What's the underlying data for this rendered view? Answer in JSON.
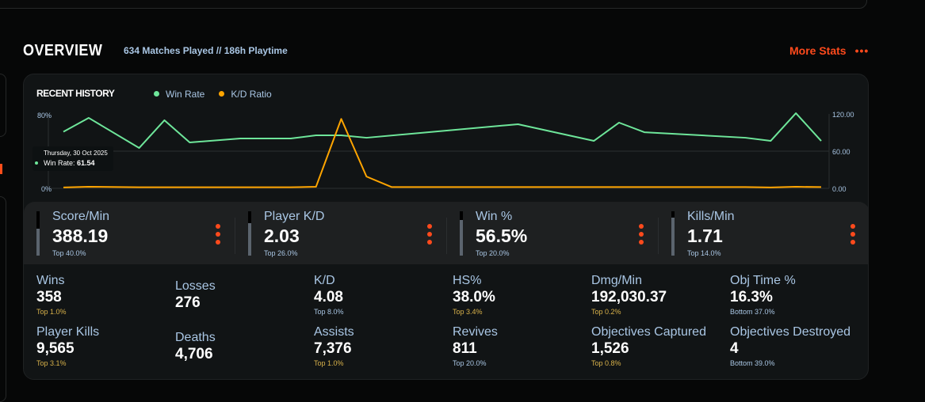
{
  "overview": {
    "title": "OVERVIEW",
    "subtitle": "634 Matches Played // 186h Playtime",
    "more_stats": "More Stats",
    "more_icon": "ellipsis-icon",
    "accent": "#ff4a1c"
  },
  "recent_history": {
    "title": "RECENT HISTORY",
    "tooltip": {
      "date": "Thursday, 30 Oct 2025",
      "label": "Win Rate:",
      "value": "61.54"
    },
    "chart_data": {
      "type": "line",
      "grid": true,
      "left_axis": {
        "ticks": [
          "80%",
          "0%"
        ],
        "range": [
          0,
          80
        ]
      },
      "right_axis": {
        "ticks": [
          "120.00",
          "60.00",
          "0.00"
        ],
        "range": [
          0,
          120
        ]
      },
      "series": [
        {
          "name": "Win Rate",
          "color": "#6ee69a",
          "axis": "left",
          "values": [
            61.54,
            76.6,
            null,
            43.9,
            74.0,
            49.9,
            null,
            54.2,
            null,
            54.2,
            57.6,
            57.6,
            55.0,
            null,
            null,
            null,
            null,
            null,
            69.7,
            null,
            null,
            51.6,
            71.4,
            61.0,
            null,
            null,
            null,
            55.0,
            51.6,
            81.7,
            51.6
          ]
        },
        {
          "name": "K/D Ratio",
          "color": "#ffa500",
          "axis": "right",
          "values": [
            1.5,
            2.5,
            null,
            1.8,
            1.8,
            1.8,
            null,
            1.8,
            null,
            1.8,
            2.5,
            112,
            19,
            2,
            null,
            null,
            null,
            null,
            2,
            null,
            null,
            2,
            2,
            2,
            null,
            null,
            null,
            2,
            1.5,
            2.5,
            2
          ]
        }
      ]
    }
  },
  "highlights": [
    {
      "label": "Score/Min",
      "value": "388.19",
      "rank": "Top 40.0%",
      "level": 0.6
    },
    {
      "label": "Player K/D",
      "value": "2.03",
      "rank": "Top 26.0%",
      "level": 0.74
    },
    {
      "label": "Win %",
      "value": "56.5%",
      "rank": "Top 20.0%",
      "level": 0.8
    },
    {
      "label": "Kills/Min",
      "value": "1.71",
      "rank": "Top 14.0%",
      "level": 0.86
    }
  ],
  "stats": [
    {
      "label": "Wins",
      "value": "358",
      "rank": "Top 1.0%",
      "gold": true
    },
    {
      "label": "Losses",
      "value": "276",
      "rank": ""
    },
    {
      "label": "K/D",
      "value": "4.08",
      "rank": "Top 8.0%"
    },
    {
      "label": "HS%",
      "value": "38.0%",
      "rank": "Top 3.4%",
      "gold": true
    },
    {
      "label": "Dmg/Min",
      "value": "192,030.37",
      "rank": "Top 0.2%",
      "gold": true
    },
    {
      "label": "Obj Time %",
      "value": "16.3%",
      "rank": "Bottom 37.0%"
    },
    {
      "label": "Player Kills",
      "value": "9,565",
      "rank": "Top 3.1%",
      "gold": true
    },
    {
      "label": "Deaths",
      "value": "4,706",
      "rank": ""
    },
    {
      "label": "Assists",
      "value": "7,376",
      "rank": "Top 1.0%",
      "gold": true
    },
    {
      "label": "Revives",
      "value": "811",
      "rank": "Top 20.0%"
    },
    {
      "label": "Objectives Captured",
      "value": "1,526",
      "rank": "Top 0.8%",
      "gold": true
    },
    {
      "label": "Objectives Destroyed",
      "value": "4",
      "rank": "Bottom 39.0%"
    }
  ]
}
